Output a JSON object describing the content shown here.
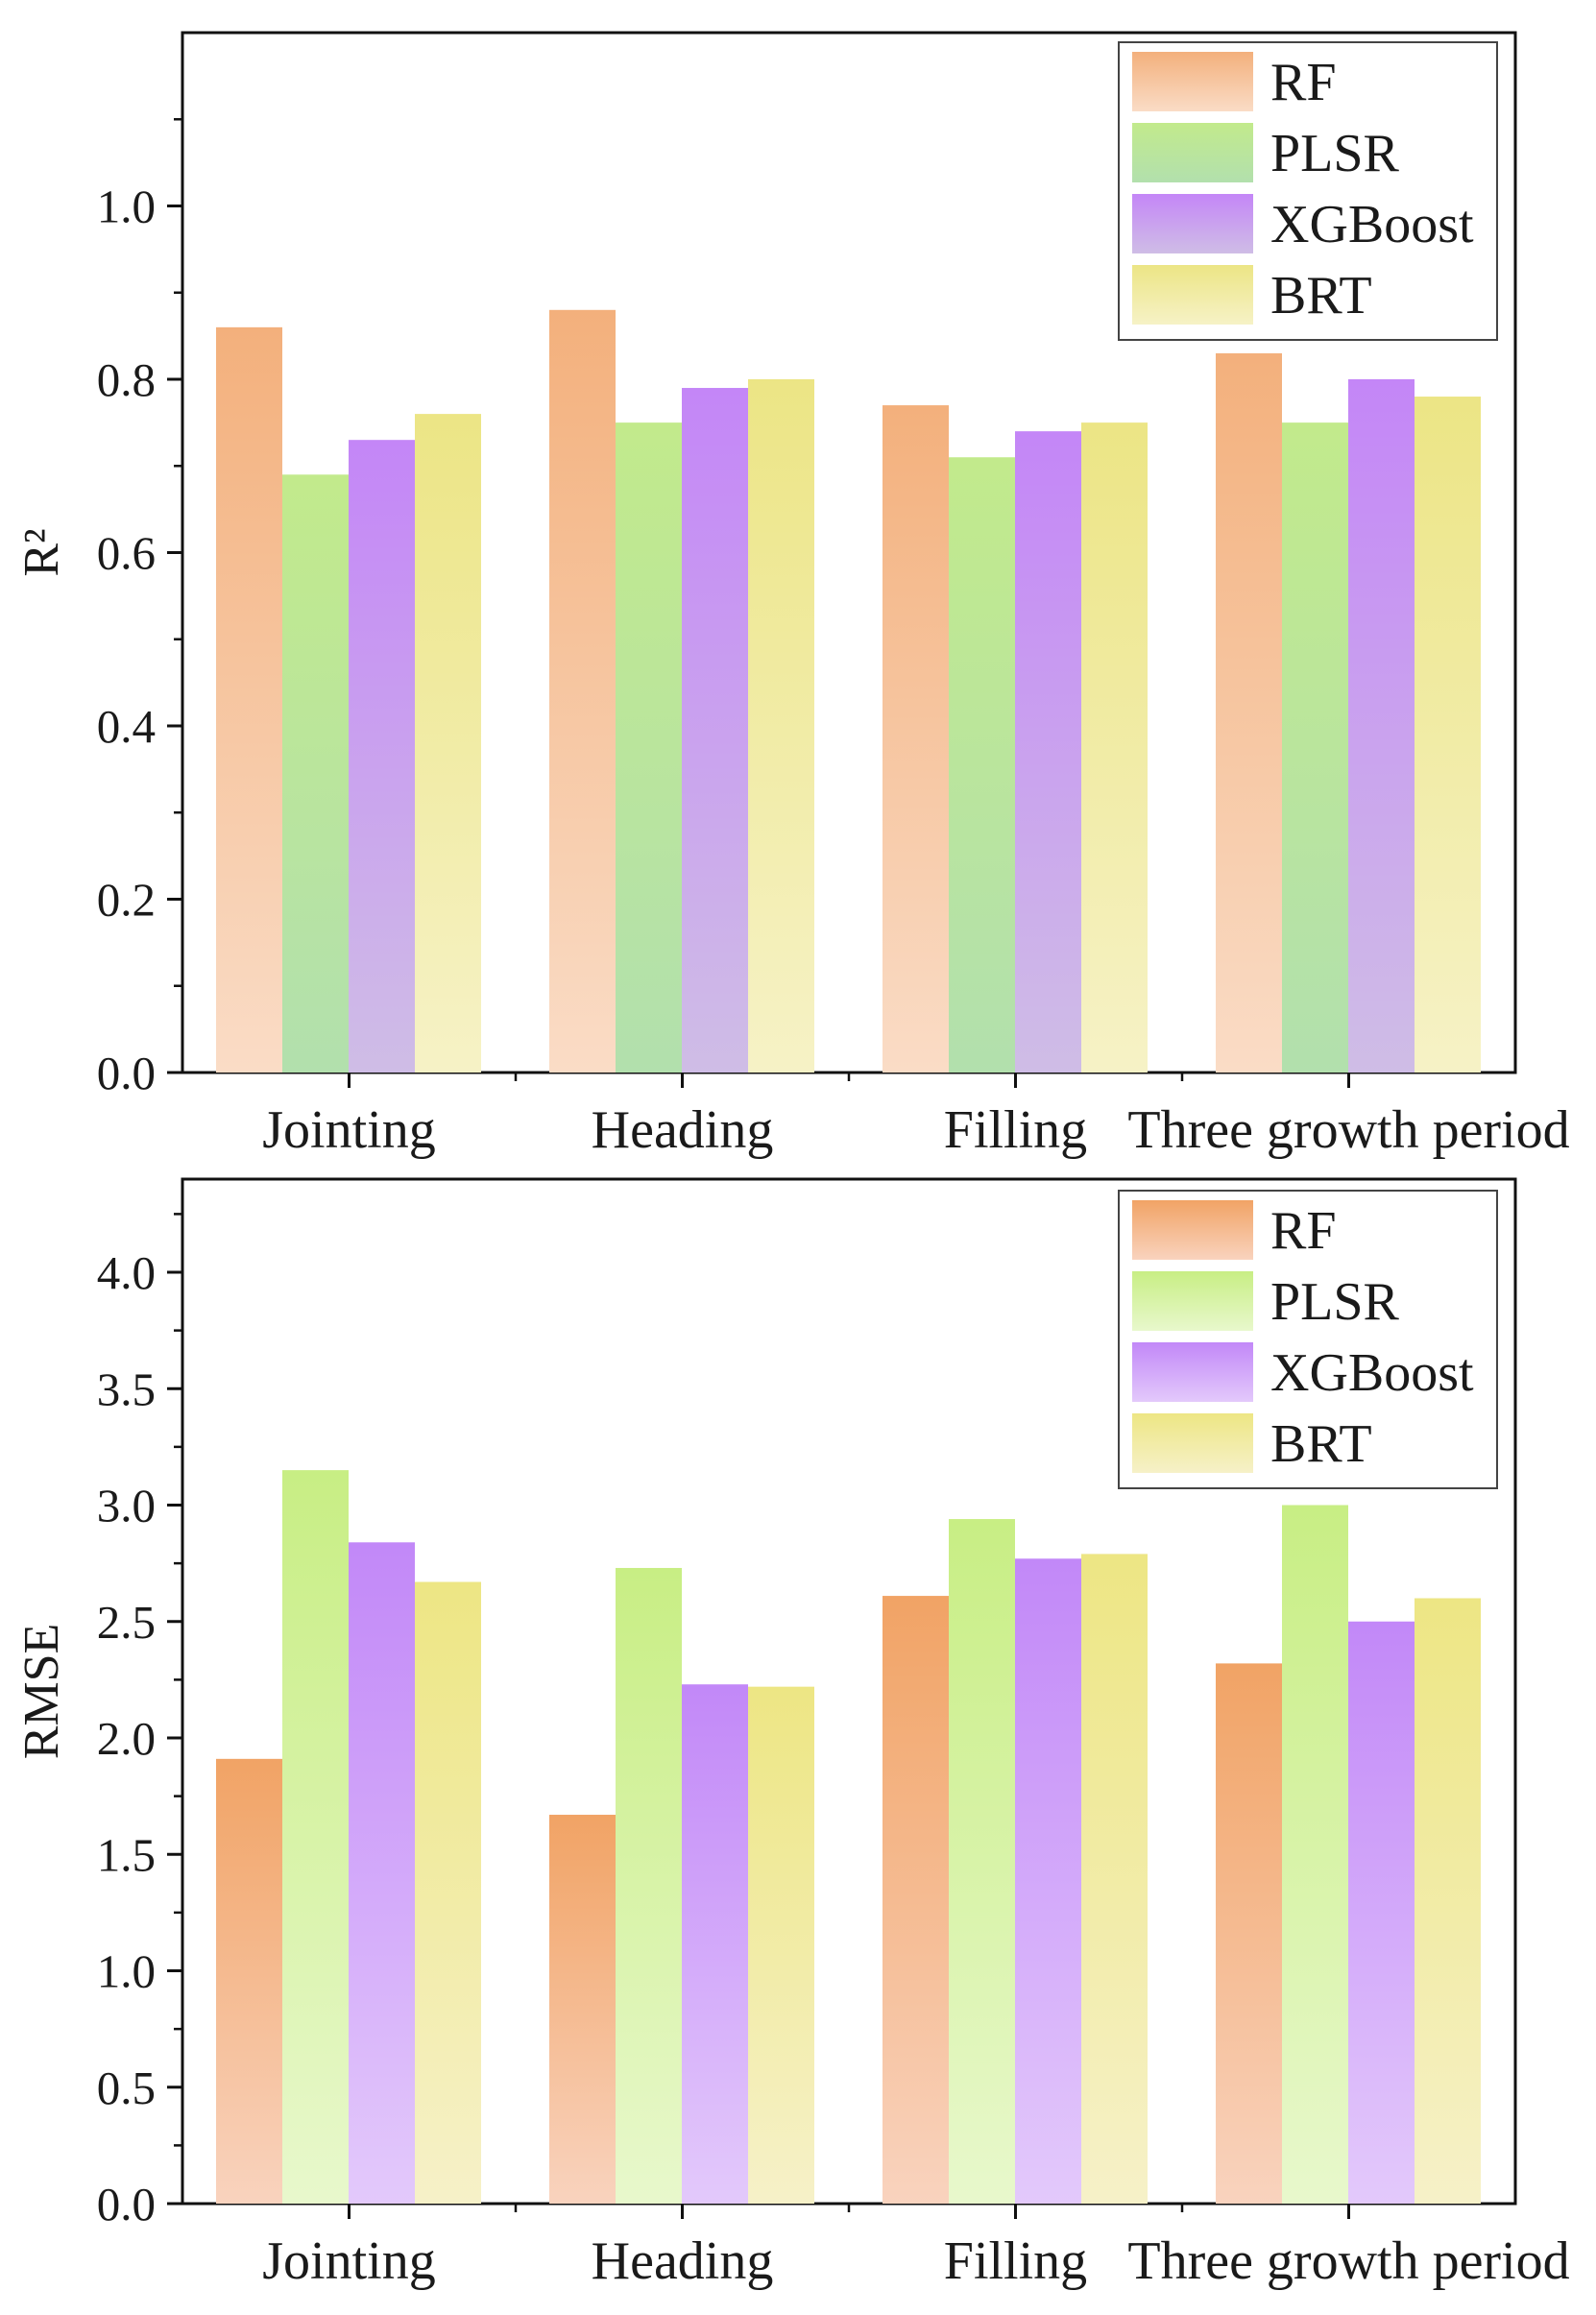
{
  "chart_data": [
    {
      "type": "bar",
      "categories": [
        "Jointing",
        "Heading",
        "Filling",
        "Three growth period"
      ],
      "series": [
        {
          "name": "RF",
          "values": [
            0.86,
            0.88,
            0.77,
            0.83
          ]
        },
        {
          "name": "PLSR",
          "values": [
            0.69,
            0.75,
            0.71,
            0.75
          ]
        },
        {
          "name": "XGBoost",
          "values": [
            0.73,
            0.79,
            0.74,
            0.8
          ]
        },
        {
          "name": "BRT",
          "values": [
            0.76,
            0.8,
            0.75,
            0.78
          ]
        }
      ],
      "title": "",
      "xlabel": "",
      "ylabel": "R²",
      "ylim": [
        0,
        1.2
      ],
      "yticks": [
        "0.0",
        "0.2",
        "0.4",
        "0.6",
        "0.8",
        "1.0"
      ],
      "legend": "top-right",
      "colors": {
        "RF": [
          "#f3b07c",
          "#fadcc6"
        ],
        "PLSR": [
          "#c2ea8c",
          "#b2e0ad"
        ],
        "XGBoost": [
          "#c486f7",
          "#cfbde6"
        ],
        "BRT": [
          "#ece585",
          "#f6f2c6"
        ]
      }
    },
    {
      "type": "bar",
      "categories": [
        "Jointing",
        "Heading",
        "Filling",
        "Three growth period"
      ],
      "series": [
        {
          "name": "RF",
          "values": [
            1.91,
            1.67,
            2.61,
            2.32
          ]
        },
        {
          "name": "PLSR",
          "values": [
            3.15,
            2.73,
            2.94,
            3.0
          ]
        },
        {
          "name": "XGBoost",
          "values": [
            2.84,
            2.23,
            2.77,
            2.5
          ]
        },
        {
          "name": "BRT",
          "values": [
            2.67,
            2.22,
            2.79,
            2.6
          ]
        }
      ],
      "title": "",
      "xlabel": "",
      "ylabel": "RMSE",
      "ylim": [
        0,
        4.4
      ],
      "yticks": [
        "0.0",
        "0.5",
        "1.0",
        "1.5",
        "2.0",
        "2.5",
        "3.0",
        "3.5",
        "4.0"
      ],
      "legend": "top-right",
      "colors": {
        "RF": [
          "#f1a365",
          "#f9d3be"
        ],
        "PLSR": [
          "#c8ee84",
          "#e8f8cc"
        ],
        "XGBoost": [
          "#c288f8",
          "#e3c9fb"
        ],
        "BRT": [
          "#ede684",
          "#f6f1c8"
        ]
      }
    }
  ]
}
